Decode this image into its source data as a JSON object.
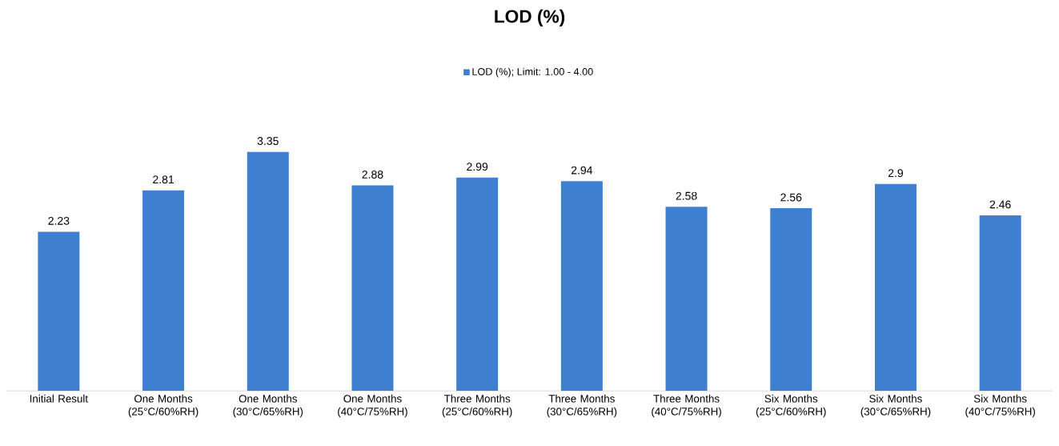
{
  "chart_data": {
    "type": "bar",
    "title": "LOD (%)",
    "categories": [
      "Initial Result",
      "One Months (25°C/60%RH)",
      "One Months (30°C/65%RH)",
      "One Months (40°C/75%RH)",
      "Three Months (25°C/60%RH)",
      "Three Months (30°C/65%RH)",
      "Three Months (40°C/75%RH)",
      "Six Months (25°C/60%RH)",
      "Six Months (30°C/65%RH)",
      "Six Months (40°C/75%RH)"
    ],
    "series": [
      {
        "name": "LOD (%); Limit: 1.00 - 4.00",
        "color": "#3f7fcf",
        "values": [
          2.23,
          2.81,
          3.35,
          2.88,
          2.99,
          2.94,
          2.58,
          2.56,
          2.9,
          2.46
        ]
      }
    ],
    "data_labels": true,
    "legend": "top"
  }
}
